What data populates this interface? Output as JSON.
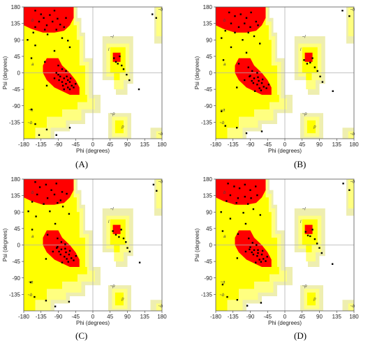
{
  "colors": {
    "core": "#ff0000",
    "allowed": "#ffff00",
    "generous": "#ffff80",
    "outside": "#eeeeb0",
    "point": "#000000",
    "zero_line": "#b0b0b0"
  },
  "chart_data": [
    {
      "type": "scatter",
      "panel": "A",
      "caption": "(A)",
      "xlabel": "Phi (degrees)",
      "ylabel": "Psi (degrees)",
      "xlim": [
        -180,
        180
      ],
      "ylim": [
        -180,
        180
      ],
      "xticks": [
        "-180",
        "-135",
        "-90",
        "-45",
        "0",
        "45",
        "90",
        "135",
        "180"
      ],
      "yticks": [
        "180",
        "135",
        "90",
        "45",
        "0",
        "-45",
        "-90",
        "-135"
      ],
      "region_letters": [
        "b",
        "a",
        "~l",
        "l",
        "~p",
        "~b",
        "p",
        "~a",
        "~b",
        "~b"
      ],
      "points": [
        [
          -150,
          170
        ],
        [
          -135,
          160
        ],
        [
          -128,
          150
        ],
        [
          -112,
          158
        ],
        [
          -100,
          170
        ],
        [
          -92,
          148
        ],
        [
          -140,
          140
        ],
        [
          -120,
          130
        ],
        [
          -105,
          140
        ],
        [
          -85,
          132
        ],
        [
          -70,
          150
        ],
        [
          -150,
          125
        ],
        [
          -125,
          118
        ],
        [
          -95,
          118
        ],
        [
          -75,
          125
        ],
        [
          -155,
          110
        ],
        [
          -118,
          105
        ],
        [
          -170,
          90
        ],
        [
          -80,
          95
        ],
        [
          -65,
          88
        ],
        [
          -150,
          75
        ],
        [
          -60,
          70
        ],
        [
          -100,
          60
        ],
        [
          -160,
          40
        ],
        [
          -125,
          30
        ],
        [
          -90,
          20
        ],
        [
          -80,
          10
        ],
        [
          -70,
          5
        ],
        [
          -95,
          0
        ],
        [
          -85,
          -10
        ],
        [
          -75,
          -15
        ],
        [
          -65,
          -20
        ],
        [
          -60,
          -25
        ],
        [
          -70,
          -30
        ],
        [
          -55,
          -35
        ],
        [
          -80,
          -25
        ],
        [
          -90,
          -5
        ],
        [
          -100,
          -15
        ],
        [
          -50,
          -40
        ],
        [
          -60,
          -45
        ],
        [
          -45,
          -30
        ],
        [
          -65,
          -40
        ],
        [
          -75,
          -45
        ],
        [
          -88,
          -20
        ],
        [
          -68,
          -10
        ],
        [
          -78,
          -35
        ],
        [
          -58,
          -15
        ],
        [
          -120,
          -35
        ],
        [
          -160,
          -100
        ],
        [
          -150,
          -140
        ],
        [
          -120,
          -155
        ],
        [
          -95,
          -170
        ],
        [
          -140,
          -170
        ],
        [
          -60,
          -150
        ],
        [
          55,
          40
        ],
        [
          60,
          30
        ],
        [
          65,
          25
        ],
        [
          70,
          45
        ],
        [
          75,
          20
        ],
        [
          80,
          10
        ],
        [
          88,
          -5
        ],
        [
          95,
          -20
        ],
        [
          120,
          -45
        ],
        [
          155,
          160
        ],
        [
          165,
          150
        ]
      ]
    },
    {
      "type": "scatter",
      "panel": "B",
      "caption": "(B)",
      "xlabel": "Phi (degrees)",
      "ylabel": "Psi (degrees)",
      "xlim": [
        -180,
        180
      ],
      "ylim": [
        -180,
        180
      ],
      "xticks": [
        "-180",
        "-135",
        "-90",
        "-45",
        "0",
        "45",
        "90",
        "135",
        "180"
      ],
      "yticks": [
        "180",
        "135",
        "90",
        "45",
        "0",
        "-45",
        "-90",
        "-135"
      ],
      "region_letters": [
        "b",
        "a",
        "~l",
        "l",
        "~p",
        "~b",
        "p",
        "~a",
        "~b",
        "~b"
      ],
      "points": [
        [
          -145,
          165
        ],
        [
          -130,
          155
        ],
        [
          -115,
          160
        ],
        [
          -100,
          150
        ],
        [
          -88,
          165
        ],
        [
          -75,
          140
        ],
        [
          -140,
          135
        ],
        [
          -120,
          125
        ],
        [
          -105,
          135
        ],
        [
          -90,
          125
        ],
        [
          -70,
          130
        ],
        [
          -155,
          115
        ],
        [
          -130,
          110
        ],
        [
          -95,
          110
        ],
        [
          -80,
          100
        ],
        [
          -165,
          95
        ],
        [
          -110,
          90
        ],
        [
          -65,
          80
        ],
        [
          -140,
          70
        ],
        [
          -100,
          55
        ],
        [
          -160,
          35
        ],
        [
          -120,
          25
        ],
        [
          -95,
          15
        ],
        [
          -85,
          5
        ],
        [
          -72,
          0
        ],
        [
          -90,
          -8
        ],
        [
          -80,
          -15
        ],
        [
          -68,
          -22
        ],
        [
          -60,
          -28
        ],
        [
          -72,
          -32
        ],
        [
          -55,
          -38
        ],
        [
          -82,
          -28
        ],
        [
          -92,
          -10
        ],
        [
          -105,
          -20
        ],
        [
          -48,
          -42
        ],
        [
          -62,
          -48
        ],
        [
          -42,
          -32
        ],
        [
          -66,
          -42
        ],
        [
          -78,
          -50
        ],
        [
          -86,
          -22
        ],
        [
          -70,
          -12
        ],
        [
          -58,
          -18
        ],
        [
          -125,
          -40
        ],
        [
          -165,
          -105
        ],
        [
          -155,
          -145
        ],
        [
          -125,
          -150
        ],
        [
          -100,
          -165
        ],
        [
          -60,
          -160
        ],
        [
          50,
          35
        ],
        [
          58,
          25
        ],
        [
          66,
          28
        ],
        [
          72,
          40
        ],
        [
          78,
          15
        ],
        [
          85,
          5
        ],
        [
          92,
          -10
        ],
        [
          98,
          -25
        ],
        [
          125,
          -50
        ],
        [
          150,
          170
        ],
        [
          168,
          155
        ]
      ]
    },
    {
      "type": "scatter",
      "panel": "C",
      "caption": "(C)",
      "xlabel": "Phi (degrees)",
      "ylabel": "Psi (degrees)",
      "xlim": [
        -180,
        180
      ],
      "ylim": [
        -180,
        180
      ],
      "xticks": [
        "-180",
        "-135",
        "-90",
        "-45",
        "0",
        "45",
        "90",
        "135",
        "180"
      ],
      "yticks": [
        "180",
        "135",
        "90",
        "45",
        "0",
        "-45",
        "-90",
        "-135"
      ],
      "region_letters": [
        "b",
        "a",
        "~l",
        "l",
        "~p",
        "~b",
        "p",
        "~a",
        "~b",
        "~b"
      ],
      "points": [
        [
          -150,
          172
        ],
        [
          -138,
          158
        ],
        [
          -122,
          165
        ],
        [
          -108,
          150
        ],
        [
          -95,
          168
        ],
        [
          -80,
          145
        ],
        [
          -145,
          138
        ],
        [
          -118,
          128
        ],
        [
          -100,
          138
        ],
        [
          -84,
          122
        ],
        [
          -68,
          140
        ],
        [
          -158,
          118
        ],
        [
          -128,
          112
        ],
        [
          -92,
          115
        ],
        [
          -78,
          105
        ],
        [
          -168,
          92
        ],
        [
          -112,
          92
        ],
        [
          -62,
          85
        ],
        [
          -148,
          78
        ],
        [
          -98,
          58
        ],
        [
          -158,
          42
        ],
        [
          -118,
          28
        ],
        [
          -92,
          18
        ],
        [
          -82,
          8
        ],
        [
          -72,
          2
        ],
        [
          -92,
          -5
        ],
        [
          -82,
          -12
        ],
        [
          -70,
          -20
        ],
        [
          -62,
          -26
        ],
        [
          -74,
          -32
        ],
        [
          -56,
          -36
        ],
        [
          -84,
          -26
        ],
        [
          -94,
          -8
        ],
        [
          -104,
          -18
        ],
        [
          -50,
          -42
        ],
        [
          -64,
          -46
        ],
        [
          -44,
          -30
        ],
        [
          -68,
          -38
        ],
        [
          -80,
          -48
        ],
        [
          -88,
          -18
        ],
        [
          -72,
          -10
        ],
        [
          -60,
          -16
        ],
        [
          -122,
          -38
        ],
        [
          -162,
          -102
        ],
        [
          -152,
          -142
        ],
        [
          -122,
          -152
        ],
        [
          -98,
          -168
        ],
        [
          -62,
          -155
        ],
        [
          52,
          38
        ],
        [
          60,
          28
        ],
        [
          68,
          22
        ],
        [
          74,
          42
        ],
        [
          80,
          18
        ],
        [
          86,
          8
        ],
        [
          90,
          -8
        ],
        [
          96,
          -18
        ],
        [
          122,
          -48
        ],
        [
          158,
          165
        ],
        [
          166,
          148
        ]
      ]
    },
    {
      "type": "scatter",
      "panel": "D",
      "caption": "(D)",
      "xlabel": "Phi (degrees)",
      "ylabel": "Psi (degrees)",
      "xlim": [
        -180,
        180
      ],
      "ylim": [
        -180,
        180
      ],
      "xticks": [
        "-180",
        "-135",
        "-90",
        "-45",
        "0",
        "45",
        "90",
        "135",
        "180"
      ],
      "yticks": [
        "180",
        "135",
        "90",
        "45",
        "0",
        "-45",
        "-90",
        "-135"
      ],
      "region_letters": [
        "b",
        "a",
        "~l",
        "l",
        "~p",
        "~b",
        "p",
        "~a",
        "~b",
        "~b"
      ],
      "points": [
        [
          -148,
          168
        ],
        [
          -132,
          160
        ],
        [
          -118,
          155
        ],
        [
          -104,
          165
        ],
        [
          -90,
          150
        ],
        [
          -76,
          160
        ],
        [
          -142,
          136
        ],
        [
          -122,
          128
        ],
        [
          -104,
          132
        ],
        [
          -88,
          128
        ],
        [
          -72,
          136
        ],
        [
          -152,
          120
        ],
        [
          -126,
          115
        ],
        [
          -96,
          112
        ],
        [
          -82,
          98
        ],
        [
          -166,
          90
        ],
        [
          -108,
          88
        ],
        [
          -64,
          82
        ],
        [
          -142,
          72
        ],
        [
          -102,
          58
        ],
        [
          -162,
          38
        ],
        [
          -122,
          30
        ],
        [
          -94,
          18
        ],
        [
          -84,
          6
        ],
        [
          -74,
          0
        ],
        [
          -90,
          -6
        ],
        [
          -80,
          -14
        ],
        [
          -70,
          -22
        ],
        [
          -60,
          -26
        ],
        [
          -72,
          -30
        ],
        [
          -56,
          -38
        ],
        [
          -82,
          -26
        ],
        [
          -92,
          -12
        ],
        [
          -102,
          -18
        ],
        [
          -50,
          -44
        ],
        [
          -62,
          -46
        ],
        [
          -46,
          -32
        ],
        [
          -66,
          -40
        ],
        [
          -76,
          -48
        ],
        [
          -86,
          -20
        ],
        [
          -70,
          -14
        ],
        [
          -58,
          -16
        ],
        [
          -124,
          -36
        ],
        [
          -162,
          -108
        ],
        [
          -150,
          -142
        ],
        [
          -124,
          -150
        ],
        [
          -98,
          -166
        ],
        [
          -62,
          -158
        ],
        [
          54,
          36
        ],
        [
          60,
          26
        ],
        [
          66,
          24
        ],
        [
          72,
          42
        ],
        [
          78,
          16
        ],
        [
          84,
          4
        ],
        [
          90,
          -8
        ],
        [
          96,
          -22
        ],
        [
          124,
          -52
        ],
        [
          152,
          168
        ],
        [
          168,
          150
        ]
      ]
    }
  ]
}
